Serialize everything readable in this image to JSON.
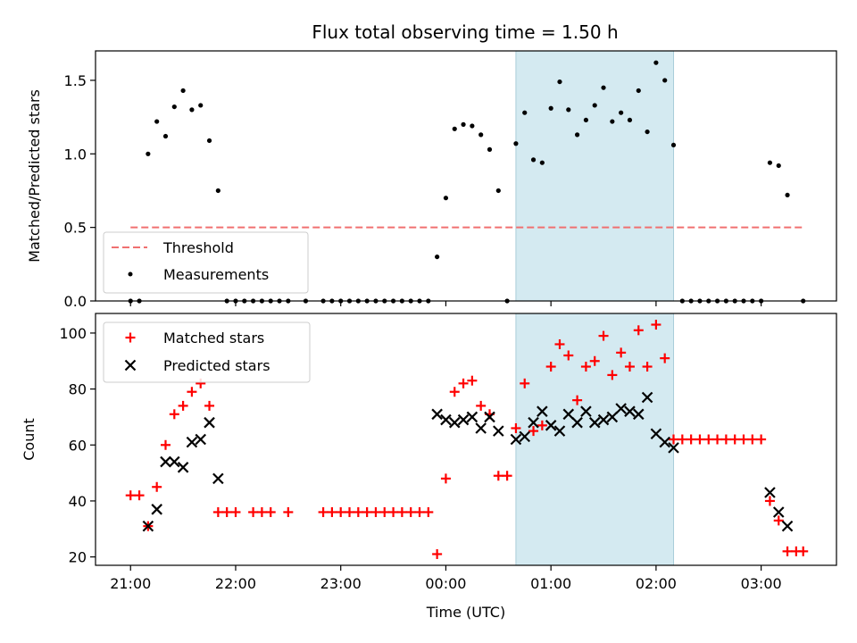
{
  "chart_data": [
    {
      "type": "scatter",
      "title": "Flux total observing time = 1.50 h",
      "ylabel": "Matched/Predicted stars",
      "ylim": [
        0,
        1.7
      ],
      "yticks": [
        "0.0",
        "0.5",
        "1.0",
        "1.5"
      ],
      "ytick_values": [
        0,
        0.5,
        1.0,
        1.5
      ],
      "xticks": [
        "21:00",
        "22:00",
        "23:00",
        "00:00",
        "01:00",
        "02:00",
        "03:00"
      ],
      "xtick_values": [
        0,
        60,
        120,
        180,
        240,
        300,
        360
      ],
      "xunit": "minutes after 21:00 UTC",
      "xlim": [
        -20,
        403
      ],
      "shaded_interval": [
        220,
        310
      ],
      "shade_color": "#d4eaf1",
      "threshold": {
        "name": "Threshold",
        "y": 0.5,
        "x_range": [
          0,
          384
        ],
        "color": "#f07070",
        "style": "dashed"
      },
      "series": [
        {
          "name": "Measurements",
          "color": "#000000",
          "marker": "dot",
          "x": [
            0,
            5,
            10,
            15,
            20,
            25,
            30,
            35,
            40,
            45,
            50,
            55,
            60,
            65,
            70,
            75,
            80,
            85,
            90,
            100,
            110,
            115,
            120,
            125,
            130,
            135,
            140,
            145,
            150,
            155,
            160,
            165,
            170,
            175,
            180,
            185,
            190,
            195,
            200,
            205,
            210,
            215,
            220,
            225,
            230,
            235,
            240,
            245,
            250,
            255,
            260,
            265,
            270,
            275,
            280,
            285,
            290,
            295,
            300,
            305,
            310,
            315,
            320,
            325,
            330,
            335,
            340,
            345,
            350,
            355,
            360,
            365,
            370,
            375,
            384
          ],
          "y": [
            0,
            0,
            1.0,
            1.22,
            1.12,
            1.32,
            1.43,
            1.3,
            1.33,
            1.09,
            0.75,
            0,
            0,
            0,
            0,
            0,
            0,
            0,
            0,
            0,
            0,
            0,
            0,
            0,
            0,
            0,
            0,
            0,
            0,
            0,
            0,
            0,
            0,
            0.3,
            0.7,
            1.17,
            1.2,
            1.19,
            1.13,
            1.03,
            0.75,
            0,
            1.07,
            1.28,
            0.96,
            0.94,
            1.31,
            1.49,
            1.3,
            1.13,
            1.23,
            1.33,
            1.45,
            1.22,
            1.28,
            1.23,
            1.43,
            1.15,
            1.62,
            1.5,
            1.06,
            0,
            0,
            0,
            0,
            0,
            0,
            0,
            0,
            0,
            0,
            0.94,
            0.92,
            0.72,
            0
          ]
        }
      ],
      "legend": {
        "placement": "lower-left",
        "entries": [
          "Threshold",
          "Measurements"
        ]
      },
      "grid": false
    },
    {
      "type": "scatter",
      "xlabel": "Time (UTC)",
      "ylabel": "Count",
      "ylim": [
        17,
        107
      ],
      "yticks": [
        "20",
        "40",
        "60",
        "80",
        "100"
      ],
      "ytick_values": [
        20,
        40,
        60,
        80,
        100
      ],
      "xticks": [
        "21:00",
        "22:00",
        "23:00",
        "00:00",
        "01:00",
        "02:00",
        "03:00"
      ],
      "xtick_values": [
        0,
        60,
        120,
        180,
        240,
        300,
        360
      ],
      "xunit": "minutes after 21:00 UTC",
      "xlim": [
        -20,
        403
      ],
      "shaded_interval": [
        220,
        310
      ],
      "shade_color": "#d4eaf1",
      "series": [
        {
          "name": "Matched stars",
          "color": "#ff0000",
          "marker": "plus",
          "x": [
            0,
            5,
            10,
            15,
            20,
            25,
            30,
            35,
            40,
            45,
            50,
            55,
            60,
            70,
            75,
            80,
            90,
            110,
            115,
            120,
            125,
            130,
            135,
            140,
            145,
            150,
            155,
            160,
            165,
            170,
            175,
            180,
            185,
            190,
            195,
            200,
            205,
            210,
            215,
            220,
            225,
            230,
            235,
            240,
            245,
            250,
            255,
            260,
            265,
            270,
            275,
            280,
            285,
            290,
            295,
            300,
            305,
            310,
            315,
            320,
            325,
            330,
            335,
            340,
            345,
            350,
            355,
            360,
            365,
            370,
            375,
            380,
            384
          ],
          "y": [
            42,
            42,
            31,
            45,
            60,
            71,
            74,
            79,
            82,
            74,
            36,
            36,
            36,
            36,
            36,
            36,
            36,
            36,
            36,
            36,
            36,
            36,
            36,
            36,
            36,
            36,
            36,
            36,
            36,
            36,
            21,
            48,
            79,
            82,
            83,
            74,
            71,
            49,
            49,
            66,
            82,
            65,
            67,
            88,
            96,
            92,
            76,
            88,
            90,
            99,
            85,
            93,
            88,
            101,
            88,
            103,
            91,
            62,
            62,
            62,
            62,
            62,
            62,
            62,
            62,
            62,
            62,
            62,
            40,
            33,
            22,
            22,
            22
          ]
        },
        {
          "name": "Predicted stars",
          "color": "#000000",
          "marker": "x",
          "x": [
            10,
            15,
            20,
            25,
            30,
            35,
            40,
            45,
            50,
            175,
            180,
            185,
            190,
            195,
            200,
            205,
            210,
            220,
            225,
            230,
            235,
            240,
            245,
            250,
            255,
            260,
            265,
            270,
            275,
            280,
            285,
            290,
            295,
            300,
            305,
            310,
            365,
            370,
            375
          ],
          "y": [
            31,
            37,
            54,
            54,
            52,
            61,
            62,
            68,
            48,
            71,
            69,
            68,
            69,
            70,
            66,
            70,
            65,
            62,
            63,
            68,
            72,
            67,
            65,
            71,
            68,
            72,
            68,
            69,
            70,
            73,
            72,
            71,
            77,
            64,
            61,
            59,
            43,
            36,
            31
          ]
        }
      ],
      "legend": {
        "placement": "upper-left",
        "entries": [
          "Matched stars",
          "Predicted stars"
        ]
      },
      "grid": false
    }
  ]
}
